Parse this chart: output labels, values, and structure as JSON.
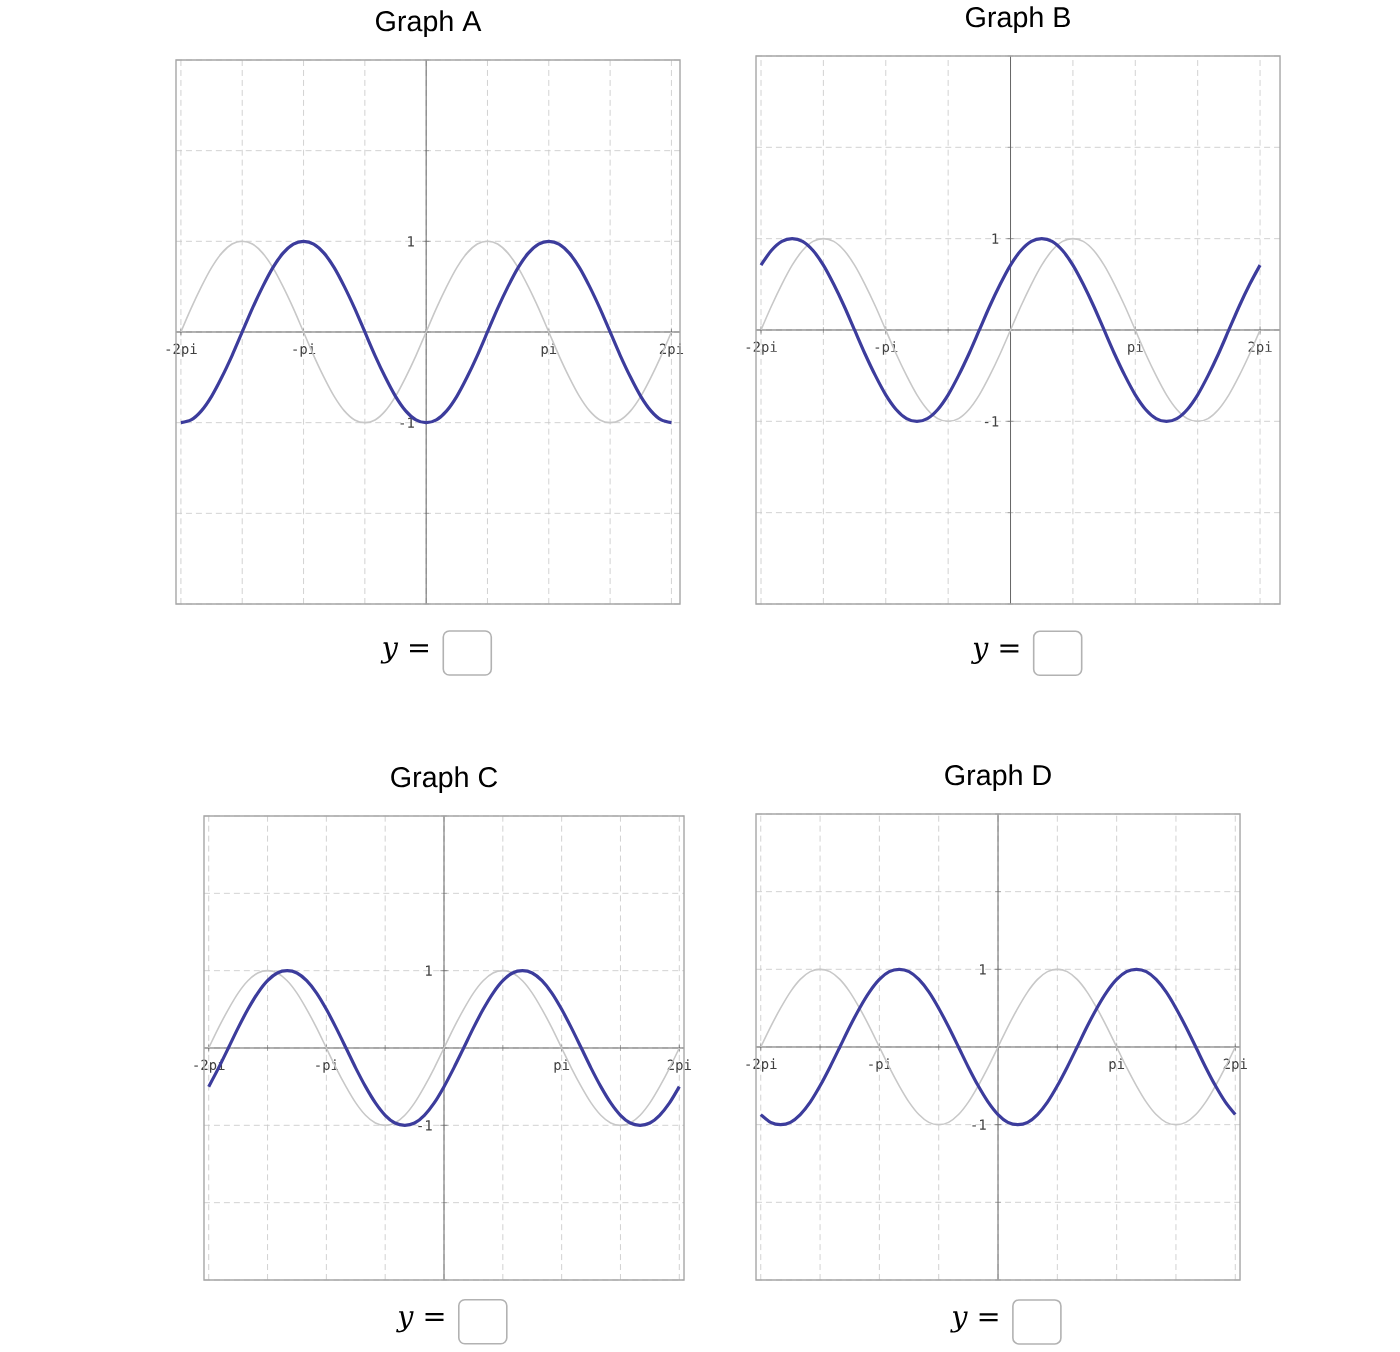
{
  "chart_data": [
    {
      "type": "line",
      "title": "Graph A",
      "annotations": [
        "y ="
      ],
      "grid": true,
      "x": [
        -2,
        -1.917,
        -1.833,
        -1.75,
        -1.667,
        -1.583,
        -1.5,
        -1.417,
        -1.333,
        -1.25,
        -1.167,
        -1.083,
        -1,
        -0.917,
        -0.833,
        -0.75,
        -0.667,
        -0.583,
        -0.5,
        -0.417,
        -0.333,
        -0.25,
        -0.167,
        -0.083,
        0,
        0.083,
        0.167,
        0.25,
        0.333,
        0.417,
        0.5,
        0.583,
        0.667,
        0.75,
        0.833,
        0.917,
        1,
        1.083,
        1.167,
        1.25,
        1.333,
        1.417,
        1.5,
        1.583,
        1.667,
        1.75,
        1.833,
        1.917,
        2
      ],
      "xlim": [
        -2.04,
        2.07
      ],
      "ylim": [
        -3,
        3
      ],
      "xticks": [
        {
          "value": -2,
          "label": "-2pi"
        },
        {
          "value": -1,
          "label": "-pi"
        },
        {
          "value": 1,
          "label": "pi"
        },
        {
          "value": 2,
          "label": "2pi"
        }
      ],
      "yticks": [
        -1,
        1
      ],
      "series": [
        {
          "color": "#c8c8c8",
          "values": [
            0,
            0.26,
            0.5,
            0.71,
            0.87,
            0.97,
            1,
            0.97,
            0.87,
            0.71,
            0.5,
            0.26,
            0,
            -0.26,
            -0.5,
            -0.71,
            -0.87,
            -0.97,
            -1,
            -0.97,
            -0.87,
            -0.71,
            -0.5,
            -0.26,
            0,
            0.26,
            0.5,
            0.71,
            0.87,
            0.97,
            1,
            0.97,
            0.87,
            0.71,
            0.5,
            0.26,
            0,
            -0.26,
            -0.5,
            -0.71,
            -0.87,
            -0.97,
            -1,
            -0.97,
            -0.87,
            -0.71,
            -0.5,
            -0.26,
            0
          ]
        },
        {
          "color": "#3c3c9c",
          "values": [
            -1,
            -0.97,
            -0.87,
            -0.71,
            -0.5,
            -0.26,
            0,
            0.26,
            0.5,
            0.71,
            0.87,
            0.97,
            1,
            0.97,
            0.87,
            0.71,
            0.5,
            0.26,
            0,
            -0.26,
            -0.5,
            -0.71,
            -0.87,
            -0.97,
            -1,
            -0.97,
            -0.87,
            -0.71,
            -0.5,
            -0.26,
            0,
            0.26,
            0.5,
            0.71,
            0.87,
            0.97,
            1,
            0.97,
            0.87,
            0.71,
            0.5,
            0.26,
            0,
            -0.26,
            -0.5,
            -0.71,
            -0.87,
            -0.97,
            -1
          ]
        }
      ]
    },
    {
      "type": "line",
      "title": "Graph B",
      "annotations": [
        "y ="
      ],
      "grid": true,
      "x": [
        -2,
        -1.917,
        -1.833,
        -1.75,
        -1.667,
        -1.583,
        -1.5,
        -1.417,
        -1.333,
        -1.25,
        -1.167,
        -1.083,
        -1,
        -0.917,
        -0.833,
        -0.75,
        -0.667,
        -0.583,
        -0.5,
        -0.417,
        -0.333,
        -0.25,
        -0.167,
        -0.083,
        0,
        0.083,
        0.167,
        0.25,
        0.333,
        0.417,
        0.5,
        0.583,
        0.667,
        0.75,
        0.833,
        0.917,
        1,
        1.083,
        1.167,
        1.25,
        1.333,
        1.417,
        1.5,
        1.583,
        1.667,
        1.75,
        1.833,
        1.917,
        2
      ],
      "xlim": [
        -2.04,
        2.16
      ],
      "ylim": [
        -3,
        3
      ],
      "xticks": [
        {
          "value": -2,
          "label": "-2pi"
        },
        {
          "value": -1,
          "label": "-pi"
        },
        {
          "value": 1,
          "label": "pi"
        },
        {
          "value": 2,
          "label": "2pi"
        }
      ],
      "yticks": [
        -1,
        1
      ],
      "series": [
        {
          "color": "#c8c8c8",
          "values": [
            0,
            0.26,
            0.5,
            0.71,
            0.87,
            0.97,
            1,
            0.97,
            0.87,
            0.71,
            0.5,
            0.26,
            0,
            -0.26,
            -0.5,
            -0.71,
            -0.87,
            -0.97,
            -1,
            -0.97,
            -0.87,
            -0.71,
            -0.5,
            -0.26,
            0,
            0.26,
            0.5,
            0.71,
            0.87,
            0.97,
            1,
            0.97,
            0.87,
            0.71,
            0.5,
            0.26,
            0,
            -0.26,
            -0.5,
            -0.71,
            -0.87,
            -0.97,
            -1,
            -0.97,
            -0.87,
            -0.71,
            -0.5,
            -0.26,
            0
          ]
        },
        {
          "color": "#3c3c9c",
          "values": [
            0.71,
            0.87,
            0.97,
            1,
            0.97,
            0.87,
            0.71,
            0.5,
            0.26,
            0,
            -0.26,
            -0.5,
            -0.71,
            -0.87,
            -0.97,
            -1,
            -0.97,
            -0.87,
            -0.71,
            -0.5,
            -0.26,
            0,
            0.26,
            0.5,
            0.71,
            0.87,
            0.97,
            1,
            0.97,
            0.87,
            0.71,
            0.5,
            0.26,
            0,
            -0.26,
            -0.5,
            -0.71,
            -0.87,
            -0.97,
            -1,
            -0.97,
            -0.87,
            -0.71,
            -0.5,
            -0.26,
            0,
            0.26,
            0.5,
            0.71
          ]
        }
      ]
    },
    {
      "type": "line",
      "title": "Graph C",
      "annotations": [
        "y ="
      ],
      "grid": true,
      "x": [
        -2,
        -1.917,
        -1.833,
        -1.75,
        -1.667,
        -1.583,
        -1.5,
        -1.417,
        -1.333,
        -1.25,
        -1.167,
        -1.083,
        -1,
        -0.917,
        -0.833,
        -0.75,
        -0.667,
        -0.583,
        -0.5,
        -0.417,
        -0.333,
        -0.25,
        -0.167,
        -0.083,
        0,
        0.083,
        0.167,
        0.25,
        0.333,
        0.417,
        0.5,
        0.583,
        0.667,
        0.75,
        0.833,
        0.917,
        1,
        1.083,
        1.167,
        1.25,
        1.333,
        1.417,
        1.5,
        1.583,
        1.667,
        1.75,
        1.833,
        1.917,
        2
      ],
      "xlim": [
        -2.04,
        2.04
      ],
      "ylim": [
        -3,
        3
      ],
      "xticks": [
        {
          "value": -2,
          "label": "-2pi"
        },
        {
          "value": -1,
          "label": "-pi"
        },
        {
          "value": 1,
          "label": "pi"
        },
        {
          "value": 2,
          "label": "2pi"
        }
      ],
      "yticks": [
        -1,
        1
      ],
      "series": [
        {
          "color": "#c8c8c8",
          "values": [
            0,
            0.26,
            0.5,
            0.71,
            0.87,
            0.97,
            1,
            0.97,
            0.87,
            0.71,
            0.5,
            0.26,
            0,
            -0.26,
            -0.5,
            -0.71,
            -0.87,
            -0.97,
            -1,
            -0.97,
            -0.87,
            -0.71,
            -0.5,
            -0.26,
            0,
            0.26,
            0.5,
            0.71,
            0.87,
            0.97,
            1,
            0.97,
            0.87,
            0.71,
            0.5,
            0.26,
            0,
            -0.26,
            -0.5,
            -0.71,
            -0.87,
            -0.97,
            -1,
            -0.97,
            -0.87,
            -0.71,
            -0.5,
            -0.26,
            0
          ]
        },
        {
          "color": "#3c3c9c",
          "values": [
            -0.5,
            -0.26,
            0,
            0.26,
            0.5,
            0.71,
            0.87,
            0.97,
            1,
            0.97,
            0.87,
            0.71,
            0.5,
            0.26,
            0,
            -0.26,
            -0.5,
            -0.71,
            -0.87,
            -0.97,
            -1,
            -0.97,
            -0.87,
            -0.71,
            -0.5,
            -0.26,
            0,
            0.26,
            0.5,
            0.71,
            0.87,
            0.97,
            1,
            0.97,
            0.87,
            0.71,
            0.5,
            0.26,
            0,
            -0.26,
            -0.5,
            -0.71,
            -0.87,
            -0.97,
            -1,
            -0.97,
            -0.87,
            -0.71,
            -0.5
          ]
        }
      ]
    },
    {
      "type": "line",
      "title": "Graph D",
      "annotations": [
        "y ="
      ],
      "grid": true,
      "x": [
        -2,
        -1.917,
        -1.833,
        -1.75,
        -1.667,
        -1.583,
        -1.5,
        -1.417,
        -1.333,
        -1.25,
        -1.167,
        -1.083,
        -1,
        -0.917,
        -0.833,
        -0.75,
        -0.667,
        -0.583,
        -0.5,
        -0.417,
        -0.333,
        -0.25,
        -0.167,
        -0.083,
        0,
        0.083,
        0.167,
        0.25,
        0.333,
        0.417,
        0.5,
        0.583,
        0.667,
        0.75,
        0.833,
        0.917,
        1,
        1.083,
        1.167,
        1.25,
        1.333,
        1.417,
        1.5,
        1.583,
        1.667,
        1.75,
        1.833,
        1.917,
        2
      ],
      "xlim": [
        -2.04,
        2.04
      ],
      "ylim": [
        -3,
        3
      ],
      "xticks": [
        {
          "value": -2,
          "label": "-2pi"
        },
        {
          "value": -1,
          "label": "-pi"
        },
        {
          "value": 1,
          "label": "pi"
        },
        {
          "value": 2,
          "label": "2pi"
        }
      ],
      "yticks": [
        -1,
        1
      ],
      "series": [
        {
          "color": "#c8c8c8",
          "values": [
            0,
            0.26,
            0.5,
            0.71,
            0.87,
            0.97,
            1,
            0.97,
            0.87,
            0.71,
            0.5,
            0.26,
            0,
            -0.26,
            -0.5,
            -0.71,
            -0.87,
            -0.97,
            -1,
            -0.97,
            -0.87,
            -0.71,
            -0.5,
            -0.26,
            0,
            0.26,
            0.5,
            0.71,
            0.87,
            0.97,
            1,
            0.97,
            0.87,
            0.71,
            0.5,
            0.26,
            0,
            -0.26,
            -0.5,
            -0.71,
            -0.87,
            -0.97,
            -1,
            -0.97,
            -0.87,
            -0.71,
            -0.5,
            -0.26,
            0
          ]
        },
        {
          "color": "#3c3c9c",
          "values": [
            -0.87,
            -0.97,
            -1,
            -0.97,
            -0.87,
            -0.71,
            -0.5,
            -0.26,
            0,
            0.26,
            0.5,
            0.71,
            0.87,
            0.97,
            1,
            0.97,
            0.87,
            0.71,
            0.5,
            0.26,
            0,
            -0.26,
            -0.5,
            -0.71,
            -0.87,
            -0.97,
            -1,
            -0.97,
            -0.87,
            -0.71,
            -0.5,
            -0.26,
            0,
            0.26,
            0.5,
            0.71,
            0.87,
            0.97,
            1,
            0.97,
            0.87,
            0.71,
            0.5,
            0.26,
            0,
            -0.26,
            -0.5,
            -0.71,
            -0.87
          ]
        }
      ]
    }
  ]
}
